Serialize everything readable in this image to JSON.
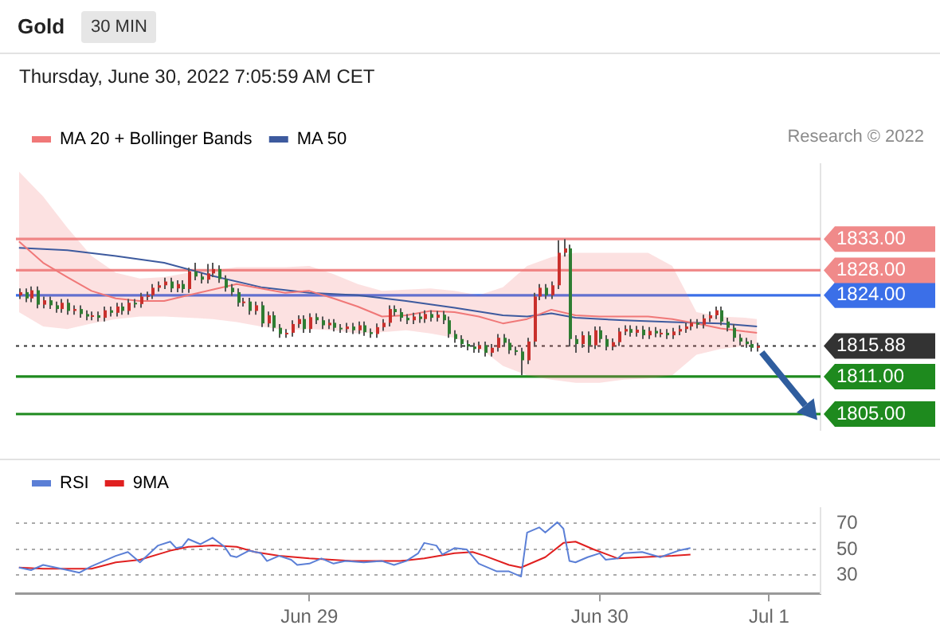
{
  "chart_data": [
    {
      "type": "candlestick",
      "title": "Gold",
      "subtitle": "30 MIN",
      "annotations": [
        "Thursday, June 30, 2022 7:05:59 AM CET",
        "Research © 2022"
      ],
      "legend": "top left",
      "tick_labels": "y",
      "marker": "none",
      "ylim": [
        1802.5,
        1845
      ],
      "yticks": [
        {
          "value": 1805,
          "label": "1805.00"
        },
        {
          "value": 1811,
          "label": "1811.00"
        },
        {
          "value": 1815.88,
          "label": "1815.88"
        },
        {
          "value": 1824,
          "label": "1824.00"
        },
        {
          "value": 1828,
          "label": "1828.00"
        },
        {
          "value": 1833,
          "label": "1833.00"
        }
      ],
      "categories": [
        null,
        null,
        null,
        null,
        null,
        null,
        null,
        null,
        null,
        null,
        null,
        null,
        null,
        null,
        null,
        null,
        null,
        null,
        null,
        null,
        null,
        null,
        null,
        null,
        null,
        null,
        null,
        null,
        null,
        null,
        null,
        null,
        null,
        null,
        null,
        null,
        null,
        null,
        null,
        null,
        null,
        null,
        null,
        null,
        null,
        null,
        null,
        null,
        null,
        null,
        null,
        null,
        null,
        null,
        null,
        null,
        null,
        null,
        null,
        null,
        null,
        null,
        null,
        null,
        null,
        null,
        null,
        null,
        null,
        null,
        null,
        null,
        null,
        null,
        null,
        null,
        null,
        null,
        null,
        null,
        null,
        null,
        null,
        null,
        null,
        null,
        null,
        null,
        null,
        null,
        null,
        null,
        null,
        null,
        null,
        null,
        null,
        null,
        null,
        null,
        null,
        null,
        null,
        null,
        null,
        null,
        null,
        null,
        null,
        null,
        null,
        null,
        null,
        null,
        null,
        null,
        null,
        null,
        null,
        null,
        null,
        null,
        null
      ],
      "series": [
        {
          "ohlc": [
            [
              1824.0,
              1825.1,
              1823.4,
              1824.5
            ],
            [
              1824.5,
              1825.1,
              1822.9,
              1823.5
            ],
            [
              1823.5,
              1825.4,
              1822.9,
              1824.8
            ],
            [
              1824.8,
              1825.4,
              1821.9,
              1822.5
            ],
            [
              1822.5,
              1823.8,
              1821.9,
              1823.2
            ],
            [
              1823.2,
              1823.8,
              1821.8,
              1822.4
            ],
            [
              1822.4,
              1823.0,
              1821.2,
              1821.8
            ],
            [
              1821.8,
              1823.4,
              1821.2,
              1822.8
            ],
            [
              1822.8,
              1823.4,
              1820.9,
              1821.5
            ],
            [
              1821.5,
              1822.4,
              1820.9,
              1821.8
            ],
            [
              1821.8,
              1822.4,
              1820.4,
              1821.0
            ],
            [
              1821.0,
              1821.6,
              1820.0,
              1820.6
            ],
            [
              1820.6,
              1821.4,
              1820.0,
              1820.8
            ],
            [
              1820.8,
              1821.4,
              1819.8,
              1820.4
            ],
            [
              1820.4,
              1822.2,
              1819.8,
              1821.6
            ],
            [
              1821.6,
              1822.2,
              1820.6,
              1821.2
            ],
            [
              1821.2,
              1822.8,
              1820.6,
              1822.2
            ],
            [
              1822.2,
              1822.8,
              1820.9,
              1821.5
            ],
            [
              1821.5,
              1823.4,
              1820.9,
              1822.8
            ],
            [
              1822.8,
              1823.4,
              1822.0,
              1822.6
            ],
            [
              1822.6,
              1824.4,
              1822.0,
              1823.8
            ],
            [
              1823.8,
              1824.6,
              1823.2,
              1824.0
            ],
            [
              1824.0,
              1825.8,
              1823.4,
              1825.2
            ],
            [
              1825.2,
              1826.2,
              1824.6,
              1825.6
            ],
            [
              1825.6,
              1826.8,
              1825.0,
              1826.2
            ],
            [
              1826.2,
              1826.8,
              1824.5,
              1825.1
            ],
            [
              1825.1,
              1826.4,
              1824.5,
              1825.8
            ],
            [
              1825.8,
              1826.4,
              1824.4,
              1825.0
            ],
            [
              1825.0,
              1828.4,
              1824.4,
              1827.8
            ],
            [
              1827.8,
              1829.2,
              1826.4,
              1827.0
            ],
            [
              1827.0,
              1827.6,
              1825.9,
              1826.5
            ],
            [
              1826.5,
              1829.0,
              1825.9,
              1827.5
            ],
            [
              1827.5,
              1829.2,
              1826.9,
              1828.2
            ],
            [
              1828.2,
              1828.8,
              1826.0,
              1826.6
            ],
            [
              1826.6,
              1827.2,
              1824.6,
              1825.2
            ],
            [
              1825.2,
              1825.8,
              1823.9,
              1824.5
            ],
            [
              1824.5,
              1825.1,
              1822.2,
              1822.8
            ],
            [
              1822.8,
              1823.6,
              1822.2,
              1823.0
            ],
            [
              1823.0,
              1823.6,
              1820.9,
              1821.5
            ],
            [
              1821.5,
              1823.0,
              1820.9,
              1822.4
            ],
            [
              1822.4,
              1823.0,
              1818.9,
              1819.5
            ],
            [
              1819.5,
              1821.4,
              1818.9,
              1820.8
            ],
            [
              1820.8,
              1821.4,
              1818.2,
              1818.8
            ],
            [
              1818.8,
              1819.4,
              1817.2,
              1817.8
            ],
            [
              1817.8,
              1818.6,
              1817.2,
              1818.0
            ],
            [
              1818.0,
              1820.0,
              1817.4,
              1819.4
            ],
            [
              1819.4,
              1820.8,
              1818.8,
              1820.2
            ],
            [
              1820.2,
              1820.8,
              1818.0,
              1818.6
            ],
            [
              1818.6,
              1821.1,
              1818.0,
              1820.5
            ],
            [
              1820.5,
              1821.1,
              1819.4,
              1820.0
            ],
            [
              1820.0,
              1820.6,
              1818.6,
              1819.2
            ],
            [
              1819.2,
              1820.2,
              1818.6,
              1819.6
            ],
            [
              1819.6,
              1820.2,
              1818.2,
              1818.8
            ],
            [
              1818.8,
              1819.4,
              1818.0,
              1818.6
            ],
            [
              1818.6,
              1819.6,
              1818.0,
              1819.0
            ],
            [
              1819.0,
              1819.6,
              1817.8,
              1818.4
            ],
            [
              1818.4,
              1819.8,
              1817.8,
              1819.2
            ],
            [
              1819.2,
              1819.8,
              1817.5,
              1818.1
            ],
            [
              1818.1,
              1818.7,
              1817.2,
              1817.8
            ],
            [
              1817.8,
              1819.5,
              1817.2,
              1818.9
            ],
            [
              1818.9,
              1820.2,
              1818.3,
              1819.6
            ],
            [
              1819.6,
              1822.4,
              1819.0,
              1821.8
            ],
            [
              1821.8,
              1822.4,
              1820.7,
              1821.3
            ],
            [
              1821.3,
              1821.9,
              1819.8,
              1820.4
            ],
            [
              1820.4,
              1821.0,
              1819.4,
              1820.0
            ],
            [
              1820.0,
              1821.2,
              1819.4,
              1820.6
            ],
            [
              1820.6,
              1821.2,
              1819.6,
              1820.2
            ],
            [
              1820.2,
              1821.6,
              1819.6,
              1821.0
            ],
            [
              1821.0,
              1821.6,
              1819.8,
              1820.4
            ],
            [
              1820.4,
              1821.5,
              1819.8,
              1820.9
            ],
            [
              1820.9,
              1821.5,
              1819.4,
              1820.0
            ],
            [
              1820.0,
              1820.6,
              1817.2,
              1817.8
            ],
            [
              1817.8,
              1818.4,
              1816.4,
              1817.0
            ],
            [
              1817.0,
              1817.6,
              1815.6,
              1816.2
            ],
            [
              1816.2,
              1816.8,
              1815.2,
              1815.8
            ],
            [
              1815.8,
              1816.4,
              1814.8,
              1815.4
            ],
            [
              1815.4,
              1816.6,
              1814.8,
              1816.0
            ],
            [
              1816.0,
              1816.6,
              1814.2,
              1814.8
            ],
            [
              1814.8,
              1816.2,
              1814.2,
              1815.6
            ],
            [
              1815.6,
              1817.8,
              1815.0,
              1817.2
            ],
            [
              1817.2,
              1817.8,
              1815.8,
              1816.4
            ],
            [
              1816.4,
              1817.0,
              1814.6,
              1815.2
            ],
            [
              1815.2,
              1815.8,
              1814.4,
              1815.0
            ],
            [
              1815.0,
              1815.6,
              1811.2,
              1813.6
            ],
            [
              1813.6,
              1817.2,
              1813.0,
              1816.6
            ],
            [
              1816.6,
              1824.4,
              1816.0,
              1823.8
            ],
            [
              1823.8,
              1825.8,
              1823.2,
              1825.2
            ],
            [
              1825.2,
              1825.8,
              1823.4,
              1824.0
            ],
            [
              1824.0,
              1826.2,
              1823.4,
              1825.6
            ],
            [
              1825.6,
              1832.8,
              1825.0,
              1830.8
            ],
            [
              1830.8,
              1833.0,
              1830.2,
              1831.5
            ],
            [
              1831.5,
              1832.1,
              1815.8,
              1817.0
            ],
            [
              1817.0,
              1817.6,
              1814.8,
              1816.2
            ],
            [
              1816.2,
              1818.2,
              1815.6,
              1817.6
            ],
            [
              1817.6,
              1818.2,
              1814.8,
              1816.0
            ],
            [
              1816.0,
              1819.0,
              1815.4,
              1818.4
            ],
            [
              1818.4,
              1819.0,
              1816.4,
              1817.0
            ],
            [
              1817.0,
              1817.6,
              1815.2,
              1815.8
            ],
            [
              1815.8,
              1817.1,
              1815.2,
              1816.5
            ],
            [
              1816.5,
              1818.8,
              1815.9,
              1818.2
            ],
            [
              1818.2,
              1819.2,
              1817.6,
              1818.6
            ],
            [
              1818.6,
              1819.2,
              1817.4,
              1818.0
            ],
            [
              1818.0,
              1819.1,
              1817.4,
              1818.5
            ],
            [
              1818.5,
              1819.1,
              1817.0,
              1817.6
            ],
            [
              1817.6,
              1818.9,
              1817.0,
              1818.3
            ],
            [
              1818.3,
              1818.9,
              1817.3,
              1817.9
            ],
            [
              1817.9,
              1818.6,
              1817.3,
              1818.0
            ],
            [
              1818.0,
              1818.6,
              1817.0,
              1817.6
            ],
            [
              1817.6,
              1818.8,
              1817.0,
              1818.2
            ],
            [
              1818.2,
              1819.2,
              1817.6,
              1818.6
            ],
            [
              1818.6,
              1819.6,
              1818.0,
              1819.0
            ],
            [
              1819.0,
              1820.2,
              1818.4,
              1819.6
            ],
            [
              1819.6,
              1820.2,
              1818.7,
              1819.3
            ],
            [
              1819.3,
              1820.9,
              1818.7,
              1820.3
            ],
            [
              1820.3,
              1821.4,
              1819.7,
              1820.8
            ],
            [
              1820.8,
              1822.2,
              1820.2,
              1821.6
            ],
            [
              1821.6,
              1822.2,
              1819.2,
              1819.8
            ],
            [
              1819.8,
              1820.4,
              1818.2,
              1818.8
            ],
            [
              1818.8,
              1819.4,
              1816.6,
              1817.2
            ],
            [
              1817.2,
              1817.8,
              1816.0,
              1816.6
            ],
            [
              1816.6,
              1817.2,
              1815.6,
              1816.2
            ],
            [
              1816.2,
              1816.8,
              1815.0,
              1815.6
            ],
            [
              1815.6,
              1816.4,
              1815.0,
              1815.88
            ]
          ],
          "colors": [
            "#c9302c",
            "#2e7d32",
            "#c9302c",
            "#2e7d32",
            "#c9302c",
            "#2e7d32",
            "#2e7d32",
            "#c9302c",
            "#2e7d32",
            "#c9302c",
            "#2e7d32",
            "#2e7d32",
            "#c9302c",
            "#2e7d32",
            "#c9302c",
            "#2e7d32",
            "#c9302c",
            "#2e7d32",
            "#c9302c",
            "#2e7d32",
            "#c9302c",
            "#c9302c",
            "#c9302c",
            "#c9302c",
            "#c9302c",
            "#2e7d32",
            "#c9302c",
            "#2e7d32",
            "#c9302c",
            "#2e7d32",
            "#2e7d32",
            "#c9302c",
            "#c9302c",
            "#2e7d32",
            "#2e7d32",
            "#2e7d32",
            "#2e7d32",
            "#c9302c",
            "#2e7d32",
            "#c9302c",
            "#2e7d32",
            "#c9302c",
            "#2e7d32",
            "#2e7d32",
            "#c9302c",
            "#c9302c",
            "#c9302c",
            "#2e7d32",
            "#c9302c",
            "#2e7d32",
            "#2e7d32",
            "#c9302c",
            "#2e7d32",
            "#2e7d32",
            "#c9302c",
            "#2e7d32",
            "#c9302c",
            "#2e7d32",
            "#2e7d32",
            "#c9302c",
            "#c9302c",
            "#c9302c",
            "#2e7d32",
            "#2e7d32",
            "#2e7d32",
            "#c9302c",
            "#2e7d32",
            "#c9302c",
            "#2e7d32",
            "#c9302c",
            "#2e7d32",
            "#2e7d32",
            "#2e7d32",
            "#2e7d32",
            "#2e7d32",
            "#2e7d32",
            "#c9302c",
            "#2e7d32",
            "#c9302c",
            "#c9302c",
            "#2e7d32",
            "#2e7d32",
            "#2e7d32",
            "#2e7d32",
            "#c9302c",
            "#c9302c",
            "#c9302c",
            "#2e7d32",
            "#c9302c",
            "#c9302c",
            "#c9302c",
            "#2e7d32",
            "#2e7d32",
            "#c9302c",
            "#2e7d32",
            "#c9302c",
            "#2e7d32",
            "#2e7d32",
            "#c9302c",
            "#c9302c",
            "#c9302c",
            "#2e7d32",
            "#c9302c",
            "#2e7d32",
            "#c9302c",
            "#2e7d32",
            "#c9302c",
            "#2e7d32",
            "#c9302c",
            "#c9302c",
            "#c9302c",
            "#c9302c",
            "#2e7d32",
            "#c9302c",
            "#c9302c",
            "#c9302c",
            "#2e7d32",
            "#2e7d32",
            "#2e7d32",
            "#2e7d32",
            "#2e7d32",
            "#2e7d32",
            "#c9302c"
          ]
        },
        {
          "type": "line",
          "name": "MA 20 + Bollinger Bands",
          "color": "#f07878",
          "values": [
            1832.6,
            null,
            null,
            null,
            1829.2,
            null,
            null,
            null,
            1826.9,
            null,
            null,
            null,
            1824.7,
            null,
            null,
            null,
            1823.5,
            null,
            null,
            null,
            1823.1,
            null,
            null,
            null,
            1823.1,
            null,
            null,
            null,
            1824.0,
            null,
            null,
            null,
            1824.9,
            null,
            null,
            null,
            1825.8,
            null,
            null,
            null,
            1825.1,
            null,
            null,
            null,
            1824.4,
            null,
            null,
            null,
            1824.7,
            null,
            null,
            null,
            1823.5,
            null,
            null,
            null,
            1822.2,
            null,
            null,
            null,
            1820.6,
            null,
            null,
            null,
            1820.8,
            null,
            null,
            null,
            1821.5,
            null,
            null,
            null,
            1821.3,
            null,
            null,
            null,
            1820.6,
            null,
            null,
            null,
            1819.5,
            null,
            null,
            null,
            1820.2,
            null,
            null,
            null,
            1821.7,
            null,
            null,
            null,
            1820.8,
            null,
            null,
            null,
            1820.6,
            null,
            null,
            null,
            1820.6,
            null,
            null,
            null,
            1820.6,
            null,
            null,
            null,
            1820.2,
            null,
            null,
            null,
            1819.5,
            null,
            null,
            null,
            1818.7,
            null,
            null,
            null,
            1818.2,
            null,
            1818.0
          ],
          "upper": [
            1843.8,
            null,
            null,
            null,
            1839.8,
            null,
            null,
            null,
            1834.8,
            null,
            null,
            null,
            1830.3,
            null,
            null,
            null,
            1827.6,
            null,
            null,
            null,
            1826.7,
            null,
            null,
            null,
            1826.9,
            null,
            null,
            null,
            1827.6,
            null,
            null,
            null,
            1828.0,
            null,
            null,
            null,
            1828.5,
            null,
            null,
            null,
            1828.5,
            null,
            null,
            null,
            1828.5,
            null,
            null,
            null,
            1828.7,
            null,
            null,
            null,
            1827.4,
            null,
            null,
            null,
            1825.8,
            null,
            null,
            null,
            1824.7,
            null,
            null,
            null,
            1824.9,
            null,
            null,
            null,
            1825.1,
            null,
            null,
            null,
            1824.7,
            null,
            null,
            null,
            1824.0,
            null,
            null,
            null,
            1825.3,
            null,
            null,
            null,
            1828.7,
            null,
            null,
            null,
            1830.1,
            null,
            null,
            null,
            1830.8,
            null,
            null,
            null,
            1830.8,
            null,
            null,
            null,
            1830.8,
            null,
            null,
            null,
            1830.8,
            null,
            null,
            null,
            1828.7,
            null,
            null,
            null,
            1821.3,
            null,
            null,
            null,
            1820.6,
            null,
            null,
            null,
            1820.4,
            null,
            1820.2
          ],
          "lower": [
            1821.3,
            null,
            null,
            null,
            1819.0,
            null,
            null,
            null,
            1818.6,
            null,
            null,
            null,
            1819.5,
            null,
            null,
            null,
            1820.2,
            null,
            null,
            null,
            1820.6,
            null,
            null,
            null,
            1820.6,
            null,
            null,
            null,
            1820.4,
            null,
            null,
            null,
            1820.2,
            null,
            null,
            null,
            1819.7,
            null,
            null,
            null,
            1819.0,
            null,
            null,
            null,
            1818.4,
            null,
            null,
            null,
            1818.6,
            null,
            null,
            null,
            1818.4,
            null,
            null,
            null,
            1817.9,
            null,
            null,
            null,
            1818.1,
            null,
            null,
            null,
            1818.4,
            null,
            null,
            null,
            1817.9,
            null,
            null,
            null,
            1817.2,
            null,
            null,
            null,
            1815.7,
            null,
            null,
            null,
            1812.7,
            null,
            null,
            null,
            1811.2,
            null,
            null,
            null,
            1810.5,
            null,
            null,
            null,
            1810.0,
            null,
            null,
            null,
            1810.0,
            null,
            null,
            null,
            1810.5,
            null,
            null,
            null,
            1810.7,
            null,
            null,
            null,
            1811.2,
            null,
            null,
            null,
            1814.5,
            null,
            null,
            null,
            1815.4,
            null,
            null,
            null,
            1815.9,
            null,
            1816.3
          ]
        },
        {
          "type": "line",
          "name": "MA 50",
          "color": "#3d5a9e",
          "values": [
            1831.6,
            null,
            null,
            null,
            null,
            null,
            null,
            null,
            1831.2,
            null,
            null,
            null,
            null,
            null,
            null,
            null,
            1830.3,
            null,
            null,
            null,
            null,
            null,
            null,
            null,
            1829.2,
            null,
            null,
            null,
            null,
            null,
            null,
            null,
            1827.1,
            null,
            null,
            null,
            null,
            null,
            null,
            null,
            1825.3,
            null,
            null,
            null,
            null,
            null,
            null,
            null,
            1824.4,
            null,
            null,
            null,
            null,
            null,
            null,
            null,
            1824.0,
            null,
            null,
            null,
            null,
            null,
            null,
            null,
            1823.1,
            null,
            null,
            null,
            null,
            null,
            null,
            null,
            1822.0,
            null,
            null,
            null,
            null,
            null,
            null,
            null,
            1820.8,
            null,
            null,
            null,
            1820.6,
            null,
            null,
            null,
            1821.1,
            null,
            null,
            null,
            1820.4,
            null,
            null,
            null,
            null,
            null,
            null,
            null,
            1820.0,
            null,
            null,
            null,
            null,
            null,
            null,
            null,
            1819.7,
            null,
            null,
            null,
            null,
            null,
            null,
            null,
            1819.5,
            null,
            null,
            null,
            null,
            null,
            1819.0
          ]
        }
      ],
      "ref_lines": [
        {
          "axis": "y",
          "value": 1833,
          "color": "#f08a8a"
        },
        {
          "axis": "y",
          "value": 1828,
          "color": "#f08a8a"
        },
        {
          "axis": "y",
          "value": 1824,
          "color": "#3b6fe8"
        },
        {
          "axis": "y",
          "value": 1815.88,
          "color": "#333333",
          "line_style": "dotted"
        },
        {
          "axis": "y",
          "value": 1811,
          "color": "#1e8a1e"
        },
        {
          "axis": "y",
          "value": 1805,
          "color": "#1e8a1e"
        }
      ]
    },
    {
      "type": "line",
      "legend": "top left",
      "grid": "y",
      "marker": "none",
      "ylim": [
        16,
        82
      ],
      "yticks": [
        30,
        50,
        70
      ],
      "categories": [
        null,
        null,
        null,
        null,
        null,
        null,
        null,
        null,
        null,
        null,
        null,
        null,
        null,
        null,
        null,
        null,
        null,
        null,
        null,
        null,
        null,
        null,
        null,
        null,
        null,
        null,
        null,
        null,
        null,
        null,
        null,
        null,
        null,
        null,
        null,
        null,
        null,
        null,
        null,
        null,
        null,
        null,
        null,
        null,
        null,
        null,
        null,
        null,
        "Jun 29",
        null,
        null,
        null,
        null,
        null,
        null,
        null,
        null,
        null,
        null,
        null,
        null,
        null,
        null,
        null,
        null,
        null,
        null,
        null,
        null,
        null,
        null,
        null,
        null,
        null,
        null,
        null,
        null,
        null,
        null,
        null,
        null,
        null,
        null,
        null,
        null,
        null,
        null,
        null,
        null,
        null,
        null,
        null,
        null,
        null,
        null,
        null,
        "Jun 30",
        null,
        null,
        null,
        null,
        null,
        null,
        null,
        null,
        null,
        null,
        null,
        null,
        null,
        null,
        null,
        null,
        null,
        null,
        null,
        null,
        null,
        null,
        null,
        null,
        null,
        null,
        null,
        "Jul 1",
        null,
        null,
        null,
        null,
        null,
        null,
        null,
        null
      ],
      "series": [
        {
          "name": "RSI",
          "color": "#5b7fd6",
          "values": [
            36,
            null,
            34,
            null,
            38,
            null,
            null,
            35,
            null,
            null,
            32,
            null,
            37,
            null,
            null,
            null,
            45,
            null,
            48,
            null,
            40,
            null,
            null,
            53,
            null,
            56,
            51,
            52,
            58,
            null,
            54,
            null,
            59,
            null,
            52,
            45,
            44,
            null,
            49,
            null,
            47,
            41,
            null,
            45,
            null,
            42,
            38,
            null,
            39,
            null,
            43,
            null,
            39,
            null,
            41,
            null,
            null,
            40,
            null,
            null,
            41,
            null,
            38,
            null,
            41,
            null,
            47,
            55,
            null,
            53,
            46,
            null,
            51,
            null,
            50,
            null,
            39,
            37,
            null,
            33,
            null,
            33,
            null,
            29,
            63,
            null,
            67,
            63,
            null,
            71,
            66,
            41,
            40,
            null,
            44,
            null,
            47,
            42,
            null,
            43,
            47,
            null,
            null,
            48,
            null,
            null,
            44,
            null,
            null,
            49,
            null,
            51,
            null,
            null,
            null,
            null,
            null,
            null,
            null,
            null,
            null,
            null,
            null,
            null,
            null,
            null,
            null,
            null,
            null,
            null,
            null,
            null,
            null
          ]
        },
        {
          "name": "9MA",
          "color": "#e02020",
          "values": [
            36,
            null,
            null,
            null,
            35,
            null,
            null,
            null,
            null,
            null,
            null,
            null,
            35,
            null,
            null,
            null,
            40,
            null,
            null,
            null,
            42,
            null,
            null,
            null,
            null,
            49,
            null,
            null,
            52,
            null,
            null,
            null,
            53,
            null,
            null,
            null,
            52,
            null,
            null,
            48,
            null,
            null,
            null,
            45,
            null,
            null,
            null,
            null,
            43,
            null,
            null,
            null,
            null,
            null,
            null,
            41,
            null,
            null,
            null,
            null,
            null,
            null,
            null,
            41,
            null,
            null,
            null,
            43,
            null,
            null,
            null,
            null,
            47,
            null,
            null,
            48,
            null,
            45,
            null,
            null,
            null,
            38,
            null,
            36,
            null,
            null,
            null,
            44,
            null,
            null,
            55,
            null,
            56,
            null,
            null,
            50,
            null,
            null,
            null,
            43,
            null,
            null,
            null,
            44,
            null,
            null,
            null,
            null,
            45,
            null,
            null,
            46,
            null,
            null,
            null,
            null,
            null,
            null,
            null,
            null,
            null,
            null,
            null,
            null,
            null,
            null,
            null,
            null,
            null,
            null,
            null,
            null,
            null
          ]
        }
      ]
    }
  ]
}
